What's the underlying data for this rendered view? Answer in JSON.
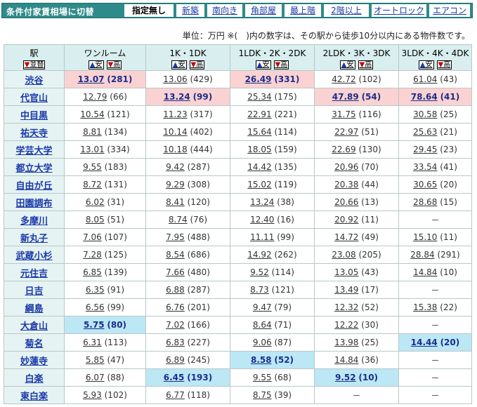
{
  "toolbar": {
    "caption": "条件付家賃相場に切替",
    "tabs": [
      "指定無し",
      "新築",
      "南向き",
      "角部屋",
      "最上階",
      "2階以上",
      "オートロック",
      "エアコン"
    ],
    "active_index": 0
  },
  "unit_note": "単位：万円 ※(　)内の数字は、その駅から徒歩10分以内にある物件数です。",
  "table": {
    "station_header": "駅",
    "station_sort": "並替",
    "columns": [
      {
        "label": "ワンルーム",
        "sort_up": "安",
        "sort_down": "高"
      },
      {
        "label": "1K・1DK",
        "sort_up": "安",
        "sort_down": "高"
      },
      {
        "label": "1LDK・2K・2DK",
        "sort_up": "安",
        "sort_down": "高"
      },
      {
        "label": "2LDK・3K・3DK",
        "sort_up": "安",
        "sort_down": "高"
      },
      {
        "label": "3LDK・4K・4DK",
        "sort_up": "安",
        "sort_down": "高"
      }
    ],
    "colors": {
      "highest": "#fbd2d2",
      "lowest": "#bce7f5"
    },
    "rows": [
      {
        "station": "渋谷",
        "cells": [
          {
            "price": "13.07",
            "count": "(281)",
            "mark": "hi"
          },
          {
            "price": "13.06",
            "count": "(429)"
          },
          {
            "price": "26.49",
            "count": "(331)",
            "mark": "hi"
          },
          {
            "price": "42.72",
            "count": "(102)"
          },
          {
            "price": "61.04",
            "count": "(43)"
          }
        ]
      },
      {
        "station": "代官山",
        "cells": [
          {
            "price": "12.79",
            "count": "(66)"
          },
          {
            "price": "13.24",
            "count": "(99)",
            "mark": "hi"
          },
          {
            "price": "25.34",
            "count": "(175)"
          },
          {
            "price": "47.89",
            "count": "(54)",
            "mark": "hi"
          },
          {
            "price": "78.64",
            "count": "(41)",
            "mark": "hi"
          }
        ]
      },
      {
        "station": "中目黒",
        "cells": [
          {
            "price": "10.54",
            "count": "(121)"
          },
          {
            "price": "11.23",
            "count": "(317)"
          },
          {
            "price": "22.91",
            "count": "(221)"
          },
          {
            "price": "31.75",
            "count": "(116)"
          },
          {
            "price": "30.58",
            "count": "(25)"
          }
        ]
      },
      {
        "station": "祐天寺",
        "cells": [
          {
            "price": "8.81",
            "count": "(134)"
          },
          {
            "price": "10.14",
            "count": "(402)"
          },
          {
            "price": "15.64",
            "count": "(114)"
          },
          {
            "price": "22.97",
            "count": "(51)"
          },
          {
            "price": "25.63",
            "count": "(21)"
          }
        ]
      },
      {
        "station": "学芸大学",
        "cells": [
          {
            "price": "13.01",
            "count": "(334)"
          },
          {
            "price": "10.18",
            "count": "(444)"
          },
          {
            "price": "18.05",
            "count": "(159)"
          },
          {
            "price": "22.69",
            "count": "(130)"
          },
          {
            "price": "29.45",
            "count": "(23)"
          }
        ]
      },
      {
        "station": "都立大学",
        "cells": [
          {
            "price": "9.55",
            "count": "(183)"
          },
          {
            "price": "9.42",
            "count": "(287)"
          },
          {
            "price": "14.42",
            "count": "(135)"
          },
          {
            "price": "20.96",
            "count": "(70)"
          },
          {
            "price": "33.54",
            "count": "(41)"
          }
        ]
      },
      {
        "station": "自由が丘",
        "cells": [
          {
            "price": "8.72",
            "count": "(131)"
          },
          {
            "price": "9.29",
            "count": "(308)"
          },
          {
            "price": "15.02",
            "count": "(119)"
          },
          {
            "price": "20.38",
            "count": "(44)"
          },
          {
            "price": "30.65",
            "count": "(20)"
          }
        ]
      },
      {
        "station": "田園調布",
        "cells": [
          {
            "price": "6.02",
            "count": "(31)"
          },
          {
            "price": "8.41",
            "count": "(120)"
          },
          {
            "price": "13.24",
            "count": "(38)"
          },
          {
            "price": "20.66",
            "count": "(13)"
          },
          {
            "price": "28.68",
            "count": "(15)"
          }
        ]
      },
      {
        "station": "多摩川",
        "cells": [
          {
            "price": "8.05",
            "count": "(51)"
          },
          {
            "price": "8.74",
            "count": "(76)"
          },
          {
            "price": "12.40",
            "count": "(16)"
          },
          {
            "price": "20.92",
            "count": "(11)"
          },
          {
            "dash": "－"
          }
        ]
      },
      {
        "station": "新丸子",
        "cells": [
          {
            "price": "7.06",
            "count": "(107)"
          },
          {
            "price": "7.95",
            "count": "(488)"
          },
          {
            "price": "11.11",
            "count": "(99)"
          },
          {
            "price": "14.72",
            "count": "(49)"
          },
          {
            "price": "15.10",
            "count": "(11)"
          }
        ]
      },
      {
        "station": "武蔵小杉",
        "cells": [
          {
            "price": "7.28",
            "count": "(125)"
          },
          {
            "price": "8.54",
            "count": "(686)"
          },
          {
            "price": "14.92",
            "count": "(262)"
          },
          {
            "price": "23.08",
            "count": "(205)"
          },
          {
            "price": "28.84",
            "count": "(291)"
          }
        ]
      },
      {
        "station": "元住吉",
        "cells": [
          {
            "price": "6.85",
            "count": "(139)"
          },
          {
            "price": "7.66",
            "count": "(480)"
          },
          {
            "price": "9.52",
            "count": "(114)"
          },
          {
            "price": "13.05",
            "count": "(43)"
          },
          {
            "price": "14.84",
            "count": "(10)"
          }
        ]
      },
      {
        "station": "日吉",
        "cells": [
          {
            "price": "6.35",
            "count": "(91)"
          },
          {
            "price": "6.88",
            "count": "(287)"
          },
          {
            "price": "8.73",
            "count": "(121)"
          },
          {
            "price": "13.49",
            "count": "(17)"
          },
          {
            "dash": "－"
          }
        ]
      },
      {
        "station": "綱島",
        "cells": [
          {
            "price": "6.56",
            "count": "(99)"
          },
          {
            "price": "6.76",
            "count": "(201)"
          },
          {
            "price": "9.47",
            "count": "(79)"
          },
          {
            "price": "12.32",
            "count": "(52)"
          },
          {
            "price": "15.38",
            "count": "(22)"
          }
        ]
      },
      {
        "station": "大倉山",
        "cells": [
          {
            "price": "5.75",
            "count": "(80)",
            "mark": "lo"
          },
          {
            "price": "7.02",
            "count": "(166)"
          },
          {
            "price": "8.64",
            "count": "(71)"
          },
          {
            "price": "12.22",
            "count": "(30)"
          },
          {
            "dash": "－"
          }
        ]
      },
      {
        "station": "菊名",
        "cells": [
          {
            "price": "6.31",
            "count": "(113)"
          },
          {
            "price": "6.83",
            "count": "(227)"
          },
          {
            "price": "9.06",
            "count": "(87)"
          },
          {
            "price": "13.98",
            "count": "(25)"
          },
          {
            "price": "14.44",
            "count": "(20)",
            "mark": "lo"
          }
        ]
      },
      {
        "station": "妙蓮寺",
        "cells": [
          {
            "price": "5.85",
            "count": "(47)"
          },
          {
            "price": "6.89",
            "count": "(245)"
          },
          {
            "price": "8.58",
            "count": "(52)",
            "mark": "lo"
          },
          {
            "price": "14.84",
            "count": "(36)"
          },
          {
            "dash": "－"
          }
        ]
      },
      {
        "station": "白楽",
        "cells": [
          {
            "price": "6.07",
            "count": "(88)"
          },
          {
            "price": "6.45",
            "count": "(193)",
            "mark": "lo"
          },
          {
            "price": "9.55",
            "count": "(68)"
          },
          {
            "price": "9.52",
            "count": "(10)",
            "mark": "lo"
          },
          {
            "dash": "－"
          }
        ]
      },
      {
        "station": "東白楽",
        "cells": [
          {
            "price": "5.93",
            "count": "(102)"
          },
          {
            "price": "6.77",
            "count": "(118)"
          },
          {
            "price": "8.75",
            "count": "(39)"
          },
          {
            "dash": "－"
          },
          {
            "dash": "－"
          }
        ]
      }
    ]
  }
}
